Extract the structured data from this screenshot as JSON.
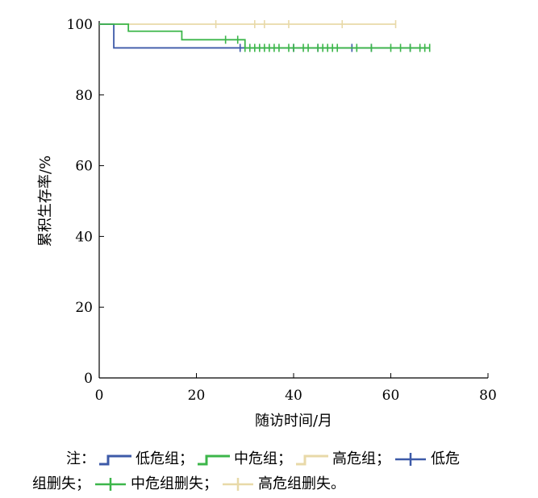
{
  "chart_data": {
    "type": "line",
    "step": true,
    "xlabel": "随访时间/月",
    "ylabel": "累积生存率/%",
    "xlim": [
      0,
      80
    ],
    "ylim": [
      0,
      100
    ],
    "xticks": [
      0,
      20,
      40,
      60,
      80
    ],
    "yticks": [
      0,
      20,
      40,
      60,
      80,
      100
    ],
    "grid": false,
    "series": [
      {
        "name": "低危组",
        "color": "#3d5aa8",
        "x": [
          0,
          3,
          3,
          68
        ],
        "y": [
          100,
          100,
          93.3,
          93.3
        ],
        "censored_name": "低危组删失",
        "censored_x": [
          29,
          40,
          45,
          52,
          56,
          64
        ],
        "censored_y": 93.3
      },
      {
        "name": "中危组",
        "color": "#3cb64a",
        "x": [
          0,
          6,
          6,
          17,
          17,
          30,
          30,
          68
        ],
        "y": [
          100,
          100,
          98,
          98,
          95.6,
          95.6,
          93.3,
          93.3
        ],
        "censored_name": "中危组删失",
        "censored_x": [
          26,
          28.5,
          30,
          31,
          32,
          33,
          34,
          35,
          36,
          37,
          39,
          40,
          42,
          43,
          45,
          46,
          47,
          48,
          49,
          53,
          56,
          60,
          62,
          64,
          66,
          67,
          68
        ],
        "censored_y": [
          95.6,
          95.6,
          93.3,
          93.3,
          93.3,
          93.3,
          93.3,
          93.3,
          93.3,
          93.3,
          93.3,
          93.3,
          93.3,
          93.3,
          93.3,
          93.3,
          93.3,
          93.3,
          93.3,
          93.3,
          93.3,
          93.3,
          93.3,
          93.3,
          93.3,
          93.3,
          93.3
        ]
      },
      {
        "name": "高危组",
        "color": "#e8d9a8",
        "x": [
          0,
          61
        ],
        "y": [
          100,
          100
        ],
        "censored_name": "高危组删失",
        "censored_x": [
          24,
          32,
          34,
          39,
          50,
          61
        ],
        "censored_y": 100
      }
    ]
  },
  "note": {
    "prefix": "注：",
    "sep": "；",
    "end": "。",
    "legend_line2_start": "组删失",
    "legend_split_first": "低危",
    "items": [
      {
        "label": "低危组",
        "kind": "line",
        "color": "#3d5aa8"
      },
      {
        "label": "中危组",
        "kind": "line",
        "color": "#3cb64a"
      },
      {
        "label": "高危组",
        "kind": "line",
        "color": "#e8d9a8"
      },
      {
        "label": "低危组删失",
        "kind": "censor",
        "color": "#3d5aa8"
      },
      {
        "label": "中危组删失",
        "kind": "censor",
        "color": "#3cb64a"
      },
      {
        "label": "高危组删失",
        "kind": "censor",
        "color": "#e8d9a8"
      }
    ]
  }
}
